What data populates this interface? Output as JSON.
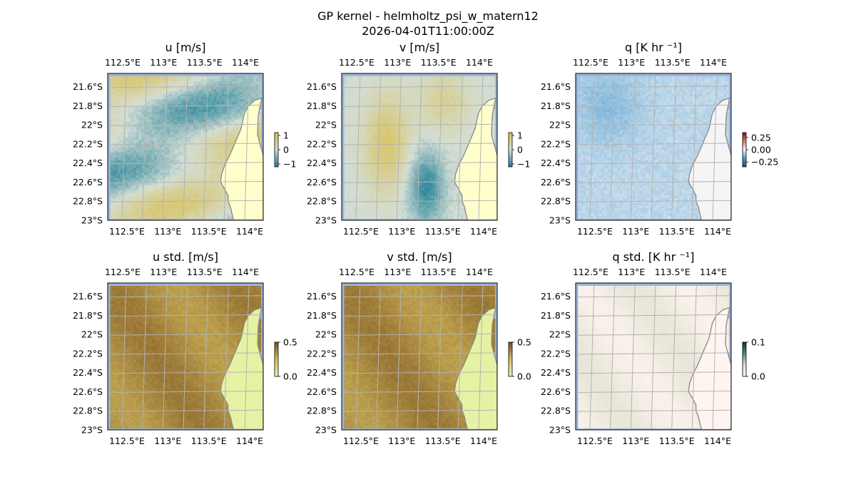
{
  "figure": {
    "title_line1": "GP kernel - helmholtz_psi_w_matern12",
    "title_line2": "2026-04-01T11:00:00Z"
  },
  "colors": {
    "ocean_bg": "#9db4dc",
    "land": "#ffffcc",
    "coast": "#888888",
    "grid": "#b3b3b3"
  },
  "chart_data": [
    {
      "type": "heatmap",
      "title": "u [m/s]",
      "field": "u",
      "x_ticks": [
        "112.5°E",
        "113°E",
        "113.5°E",
        "114°E"
      ],
      "y_ticks": [
        "21.6°S",
        "21.8°S",
        "22°S",
        "22.2°S",
        "22.4°S",
        "22.6°S",
        "22.8°S",
        "23°S"
      ],
      "xlim": [
        112.3,
        114.2
      ],
      "ylim": [
        -23.0,
        -21.46
      ],
      "colorbar": {
        "ticks": [
          "1",
          "0",
          "−1"
        ],
        "range": [
          -1.2,
          1.2
        ],
        "colors": [
          "#1f7f95",
          "#d4ded6",
          "#d9c050"
        ]
      }
    },
    {
      "type": "heatmap",
      "title": "v [m/s]",
      "field": "v",
      "x_ticks": [
        "112.5°E",
        "113°E",
        "113.5°E",
        "114°E"
      ],
      "y_ticks": [
        "21.6°S",
        "21.8°S",
        "22°S",
        "22.2°S",
        "22.4°S",
        "22.6°S",
        "22.8°S",
        "23°S"
      ],
      "xlim": [
        112.3,
        114.2
      ],
      "ylim": [
        -23.0,
        -21.46
      ],
      "colorbar": {
        "ticks": [
          "1",
          "0",
          "−1"
        ],
        "range": [
          -1.2,
          1.2
        ],
        "colors": [
          "#1f7f95",
          "#d4ded6",
          "#d9c050"
        ]
      }
    },
    {
      "type": "heatmap",
      "title": "q [K hr ⁻¹]",
      "field": "q",
      "x_ticks": [
        "112.5°E",
        "113°E",
        "113.5°E",
        "114°E"
      ],
      "y_ticks": [
        "21.6°S",
        "21.8°S",
        "22°S",
        "22.2°S",
        "22.4°S",
        "22.6°S",
        "22.8°S",
        "23°S"
      ],
      "xlim": [
        112.3,
        114.2
      ],
      "ylim": [
        -23.0,
        -21.46
      ],
      "colorbar": {
        "ticks": [
          "0.25",
          "0.00",
          "−0.25"
        ],
        "range": [
          -0.35,
          0.35
        ],
        "colors": [
          "#1a4d8c",
          "#4d9bd0",
          "#f5f5f5",
          "#e07a5a",
          "#7a1010"
        ]
      }
    },
    {
      "type": "heatmap",
      "title": "u std. [m/s]",
      "field": "u_std",
      "x_ticks": [
        "112.5°E",
        "113°E",
        "113.5°E",
        "114°E"
      ],
      "y_ticks": [
        "21.6°S",
        "21.8°S",
        "22°S",
        "22.2°S",
        "22.4°S",
        "22.6°S",
        "22.8°S",
        "23°S"
      ],
      "xlim": [
        112.3,
        114.2
      ],
      "ylim": [
        -23.0,
        -21.46
      ],
      "colorbar": {
        "ticks": [
          "0.5",
          "0.0"
        ],
        "range": [
          0,
          0.6
        ],
        "colors": [
          "#f2f5b0",
          "#d6c060",
          "#7a5020"
        ]
      }
    },
    {
      "type": "heatmap",
      "title": "v std. [m/s]",
      "field": "v_std",
      "x_ticks": [
        "112.5°E",
        "113°E",
        "113.5°E",
        "114°E"
      ],
      "y_ticks": [
        "21.6°S",
        "21.8°S",
        "22°S",
        "22.2°S",
        "22.4°S",
        "22.6°S",
        "22.8°S",
        "23°S"
      ],
      "xlim": [
        112.3,
        114.2
      ],
      "ylim": [
        -23.0,
        -21.46
      ],
      "colorbar": {
        "ticks": [
          "0.5",
          "0.0"
        ],
        "range": [
          0,
          0.6
        ],
        "colors": [
          "#f2f5b0",
          "#d6c060",
          "#7a5020"
        ]
      }
    },
    {
      "type": "heatmap",
      "title": "q std. [K hr ⁻¹]",
      "field": "q_std",
      "x_ticks": [
        "112.5°E",
        "113°E",
        "113.5°E",
        "114°E"
      ],
      "y_ticks": [
        "21.6°S",
        "21.8°S",
        "22°S",
        "22.2°S",
        "22.4°S",
        "22.6°S",
        "22.8°S",
        "23°S"
      ],
      "xlim": [
        112.3,
        114.2
      ],
      "ylim": [
        -23.0,
        -21.46
      ],
      "colorbar": {
        "ticks": [
          "0.1",
          "0.0"
        ],
        "range": [
          0,
          0.12
        ],
        "colors": [
          "#fff5f0",
          "#dfe0cf",
          "#5a8a70",
          "#113322"
        ]
      }
    }
  ]
}
